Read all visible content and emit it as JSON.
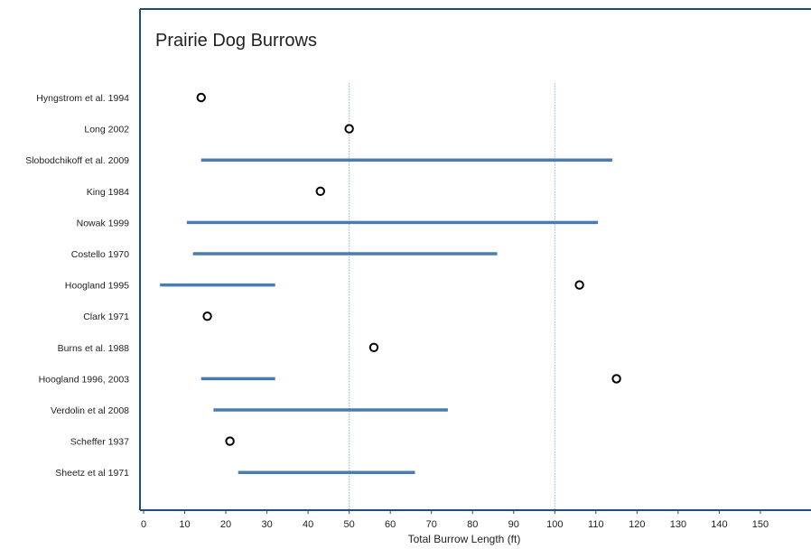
{
  "chart_data": {
    "type": "scatter",
    "title": "Prairie Dog Burrows",
    "xlabel": "Total Burrow Length (ft)",
    "ylabel": "",
    "xlim": [
      0,
      155
    ],
    "xticks": [
      0,
      10,
      20,
      30,
      40,
      50,
      60,
      70,
      80,
      90,
      100,
      110,
      120,
      130,
      140,
      150
    ],
    "reference_lines": [
      50,
      100
    ],
    "grid": false,
    "legend": "none",
    "colors": {
      "range": "#4a7bb1",
      "reference": "#8fb3d6",
      "axis": "#1f4e79",
      "point": "#000000"
    },
    "studies": [
      {
        "label": "Hyngstrom  et al. 1994",
        "value": 14
      },
      {
        "label": "Long 2002",
        "value": 50
      },
      {
        "label": "Slobodchikoff et al. 2009",
        "min": 14,
        "max": 114
      },
      {
        "label": "King 1984",
        "value": 43
      },
      {
        "label": "Nowak 1999",
        "min": 10.5,
        "max": 110.5
      },
      {
        "label": "Costello 1970",
        "min": 12,
        "max": 86
      },
      {
        "label": "Hoogland 1995",
        "min": 4,
        "max": 32,
        "value": 106
      },
      {
        "label": "Clark 1971",
        "value": 15.5
      },
      {
        "label": "Burns et al. 1988",
        "value": 56
      },
      {
        "label": "Hoogland 1996, 2003",
        "min": 14,
        "max": 32,
        "value": 115
      },
      {
        "label": "Verdolin et al 2008",
        "min": 17,
        "max": 74
      },
      {
        "label": "Scheffer 1937",
        "value": 21
      },
      {
        "label": "Sheetz et al 1971",
        "min": 23,
        "max": 66
      }
    ]
  }
}
